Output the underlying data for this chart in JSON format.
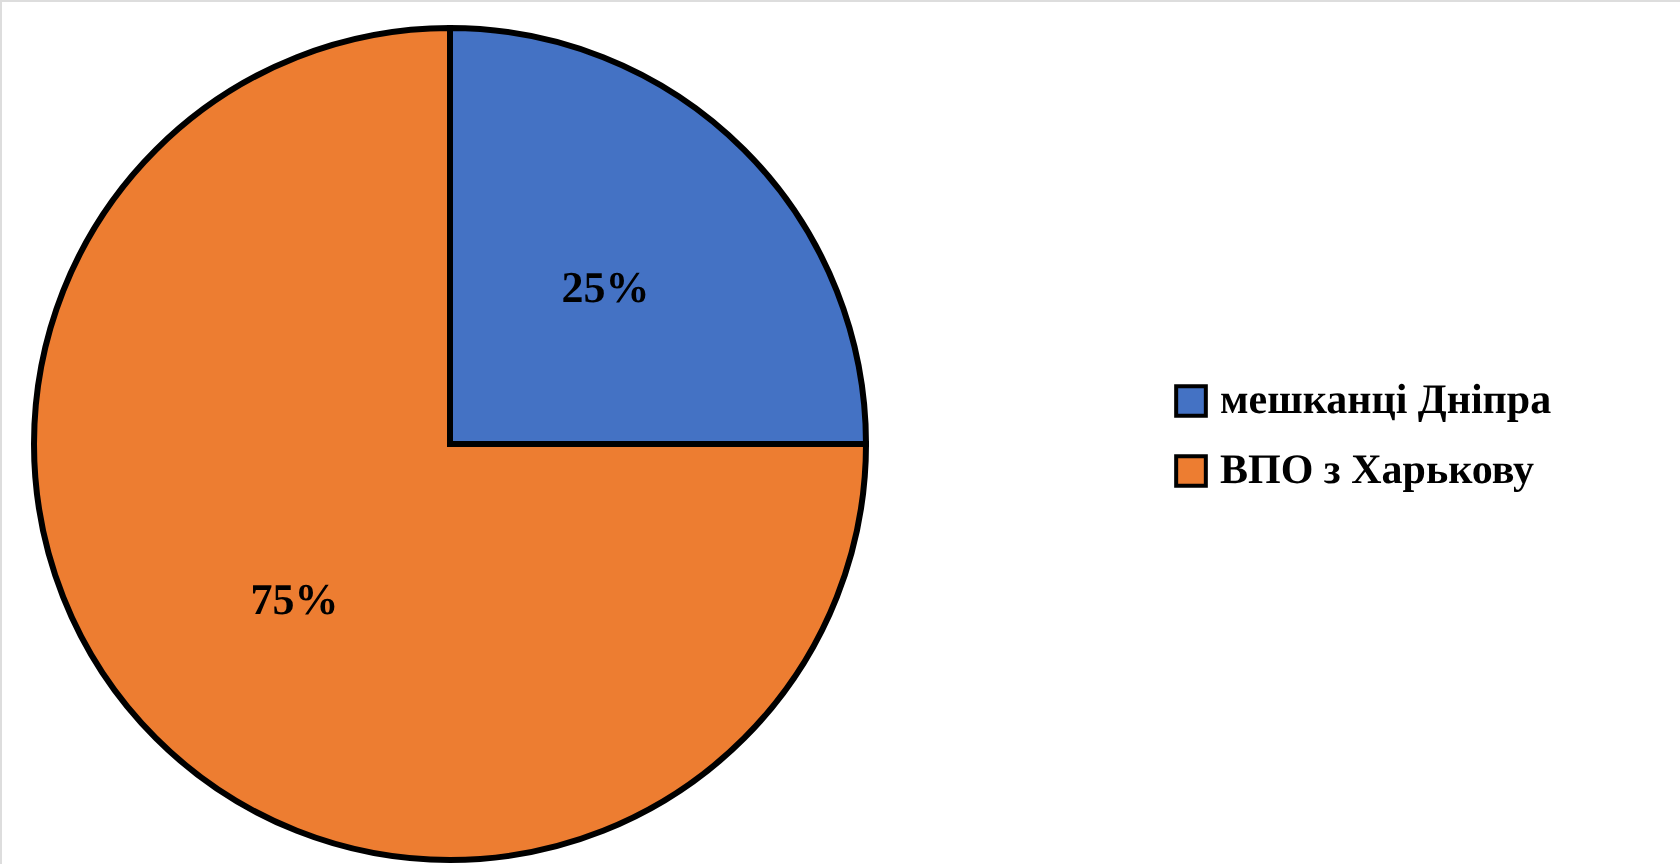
{
  "chart_data": {
    "type": "pie",
    "categories": [
      "мешканці Дніпра",
      "ВПО з Харькову"
    ],
    "values": [
      25,
      75
    ],
    "value_labels": [
      "25%",
      "75%"
    ],
    "colors": [
      "#4472c4",
      "#ed7d31"
    ],
    "legend": "right"
  }
}
